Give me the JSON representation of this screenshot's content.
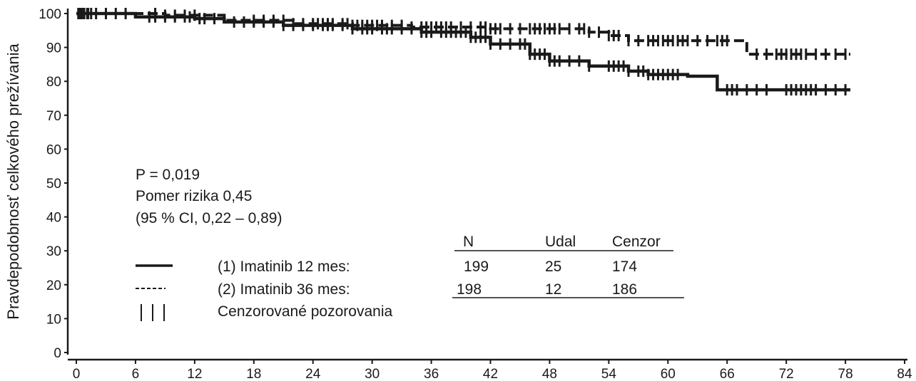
{
  "chart_data": {
    "type": "line",
    "title": "",
    "xlabel": "",
    "ylabel": "Pravdepodobnosť celkového prežívania",
    "xlim": [
      0,
      84
    ],
    "ylim": [
      0,
      100
    ],
    "x_ticks": [
      "0",
      "6",
      "12",
      "18",
      "24",
      "30",
      "36",
      "42",
      "48",
      "54",
      "60",
      "66",
      "72",
      "78",
      "84"
    ],
    "y_ticks": [
      "0",
      "10",
      "20",
      "30",
      "40",
      "50",
      "60",
      "70",
      "80",
      "90",
      "100"
    ],
    "grid": false,
    "annotations": {
      "p_value": "P = 0,019",
      "hazard_ratio": "Pomer rizika 0,45",
      "ci": "(95 % CI, 0,22 – 0,89)"
    },
    "legend": {
      "header": {
        "n": "N",
        "events": "Udal",
        "censored": "Cenzor"
      },
      "rows": [
        {
          "symbol": "———",
          "label": "(1) Imatinib 12 mes:",
          "n": "199",
          "events": "25",
          "censored": "174"
        },
        {
          "symbol": "-----",
          "label": "(2) Imatinib 36 mes:",
          "n": "198",
          "events": "12",
          "censored": "186"
        }
      ],
      "censor_symbol": "| | |",
      "censor_label": "Cenzorované pozorovania"
    },
    "series": [
      {
        "label": "(1) Imatinib 12 mes:",
        "color": "#1a1a1a",
        "line_style": "solid",
        "steps": [
          [
            0,
            100
          ],
          [
            6,
            99
          ],
          [
            12,
            98.5
          ],
          [
            15,
            97.5
          ],
          [
            21,
            96.5
          ],
          [
            28,
            95.5
          ],
          [
            35,
            94.5
          ],
          [
            40,
            93
          ],
          [
            42,
            91
          ],
          [
            46,
            88
          ],
          [
            48,
            86
          ],
          [
            52,
            84.5
          ],
          [
            56,
            83
          ],
          [
            58,
            82
          ],
          [
            60,
            82
          ],
          [
            62,
            81.5
          ],
          [
            65,
            77.5
          ],
          [
            78.5,
            77.5
          ]
        ],
        "censored_x": [
          0.2,
          0.5,
          0.8,
          1.1,
          1.5,
          2,
          3,
          4,
          5,
          7.4,
          8,
          9,
          10,
          11,
          11.5,
          12.5,
          13,
          14,
          16,
          17,
          18,
          19,
          20,
          21,
          22,
          23,
          24,
          25,
          25.5,
          26,
          27,
          28,
          29,
          29.5,
          30,
          31,
          31.5,
          32,
          33,
          34,
          35,
          35.5,
          36,
          37,
          37.5,
          38,
          38.5,
          39,
          39.5,
          40,
          40.5,
          41,
          41.5,
          42,
          43,
          44,
          45,
          45.5,
          46,
          46.5,
          47,
          47.5,
          48,
          48.5,
          49,
          50,
          51,
          52,
          54,
          54.5,
          55,
          55.5,
          56,
          57,
          57.5,
          58,
          58.5,
          59,
          59.5,
          60,
          60.5,
          61,
          66,
          66.5,
          67,
          68,
          69,
          70,
          72,
          72.5,
          73,
          73.5,
          74,
          74.5,
          75,
          76,
          77,
          78
        ]
      },
      {
        "label": "(2) Imatinib 36 mes:",
        "color": "#1a1a1a",
        "line_style": "dashed",
        "steps": [
          [
            0,
            100
          ],
          [
            9,
            99.5
          ],
          [
            15,
            98
          ],
          [
            22,
            97
          ],
          [
            28,
            96.5
          ],
          [
            34,
            96
          ],
          [
            42,
            95.5
          ],
          [
            52,
            94.5
          ],
          [
            54,
            93.5
          ],
          [
            56,
            92
          ],
          [
            64,
            92
          ],
          [
            68,
            88
          ],
          [
            78.5,
            88
          ]
        ],
        "censored_x": [
          0.3,
          0.7,
          1.2,
          8,
          9,
          10,
          11,
          12,
          18,
          19,
          20,
          21,
          22,
          23,
          24,
          24.5,
          25,
          25.5,
          26,
          27,
          27.5,
          28,
          28.5,
          29,
          29.5,
          30,
          30.5,
          31,
          32,
          33,
          34,
          35,
          35.5,
          36,
          36.5,
          37,
          37.5,
          38,
          39,
          40,
          41,
          41.5,
          42,
          42.5,
          43,
          44,
          45,
          46,
          46.5,
          47,
          47.5,
          48,
          48.5,
          49,
          50,
          51,
          51.5,
          52,
          53,
          54,
          54.5,
          55,
          56,
          57,
          58,
          58.5,
          59,
          59.5,
          60,
          60.5,
          61,
          61.5,
          62,
          63,
          64,
          65,
          65.5,
          66,
          69,
          70,
          71,
          71.5,
          72,
          72.5,
          73,
          73.5,
          74,
          75,
          76,
          77,
          78
        ]
      }
    ]
  }
}
